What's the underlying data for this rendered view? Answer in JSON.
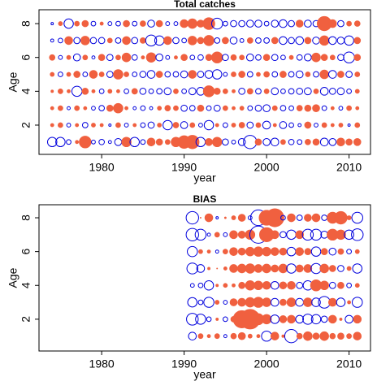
{
  "chart_data": [
    {
      "type": "bubble",
      "title": "Total catches",
      "x_label": "year",
      "y_label": "Age",
      "xlim": [
        1972.4,
        2012.6
      ],
      "ylim": [
        0.27,
        8.82
      ],
      "xticks": [
        1980,
        1990,
        2000,
        2010
      ],
      "yticks": [
        2,
        4,
        6,
        8
      ],
      "colors": {
        "positive": "#f0603f",
        "negative": "#0000dd"
      },
      "x": [
        1974,
        1975,
        1976,
        1977,
        1978,
        1979,
        1980,
        1981,
        1982,
        1983,
        1984,
        1985,
        1986,
        1987,
        1988,
        1989,
        1990,
        1991,
        1992,
        1993,
        1994,
        1995,
        1996,
        1997,
        1998,
        1999,
        2000,
        2001,
        2002,
        2003,
        2004,
        2005,
        2006,
        2007,
        2008,
        2009,
        2010,
        2011
      ],
      "ages": [
        1,
        2,
        3,
        4,
        5,
        6,
        7,
        8
      ],
      "residuals": [
        [
          -1.2,
          -1.2,
          -0.6,
          0.4,
          1.5,
          -0.5,
          -0.7,
          -0.4,
          -0.9,
          1.2,
          -1.2,
          -0.6,
          1.0,
          0.8,
          0.6,
          1.2,
          1.6,
          1.7,
          -1.2,
          0.9,
          1.2,
          -0.8,
          -0.5,
          -0.9,
          -1.7,
          0.8,
          -0.9,
          -1.0,
          0.6,
          -0.7,
          -0.6,
          0.7,
          0.8,
          -1.0,
          -0.9,
          1.0,
          0.8,
          0.9
        ],
        [
          0.4,
          0.6,
          -0.5,
          0.4,
          -0.7,
          0.5,
          0.4,
          -0.3,
          0.6,
          -0.5,
          0.4,
          -0.6,
          -0.8,
          0.5,
          -1.2,
          0.7,
          -0.9,
          0.6,
          -0.5,
          -1.2,
          0.4,
          -0.6,
          0.5,
          0.7,
          -0.8,
          0.6,
          -1.0,
          0.4,
          -0.9,
          -0.6,
          -0.4,
          0.8,
          -0.5,
          0.6,
          0.4,
          0.5,
          -0.3,
          0.6
        ],
        [
          0.4,
          0.6,
          -0.4,
          0.6,
          0.4,
          -0.5,
          -0.7,
          0.8,
          1.2,
          0.4,
          -0.4,
          -0.6,
          -0.4,
          0.5,
          0.7,
          0.6,
          -0.8,
          -0.7,
          0.8,
          -0.6,
          -0.8,
          0.6,
          0.4,
          0.5,
          -0.6,
          -0.8,
          -0.9,
          0.6,
          -0.7,
          -0.6,
          0.7,
          0.8,
          0.9,
          -0.6,
          0.4,
          -0.5,
          0.6,
          0.4
        ],
        [
          0.3,
          0.6,
          0.4,
          -1.3,
          0.8,
          0.4,
          -0.6,
          0.5,
          0.4,
          -0.6,
          0.7,
          -0.8,
          -0.6,
          -0.7,
          -0.9,
          0.6,
          -0.6,
          -0.9,
          -1.0,
          1.4,
          0.8,
          0.6,
          0.4,
          -0.8,
          0.7,
          -0.7,
          0.6,
          -0.9,
          -0.6,
          -0.7,
          -0.8,
          -0.9,
          0.6,
          -1.0,
          -0.8,
          -0.9,
          -0.6,
          0.5
        ],
        [
          0.5,
          -0.6,
          0.5,
          0.8,
          -0.6,
          1.0,
          0.6,
          -0.8,
          1.2,
          0.6,
          -0.6,
          -0.8,
          -1.0,
          0.8,
          -0.7,
          -0.7,
          -0.9,
          1.0,
          -0.8,
          -1.0,
          -1.2,
          -0.5,
          0.6,
          0.8,
          -0.7,
          0.5,
          0.7,
          -0.7,
          0.8,
          -0.7,
          -0.9,
          0.6,
          -0.7,
          1.1,
          -1.0,
          0.8,
          -0.8,
          0.6
        ],
        [
          0.7,
          -0.5,
          0.5,
          -0.9,
          0.6,
          -0.4,
          0.8,
          -0.8,
          0.6,
          1.1,
          -0.7,
          0.4,
          1.2,
          -0.9,
          -0.5,
          0.4,
          0.8,
          -0.6,
          -0.7,
          0.8,
          1.4,
          -0.8,
          0.7,
          0.6,
          -0.9,
          -0.7,
          0.8,
          -0.8,
          -0.6,
          0.5,
          -0.7,
          -0.9,
          1.1,
          0.8,
          0.6,
          -0.8,
          -1.4,
          0.8
        ],
        [
          -0.4,
          -0.6,
          1.0,
          -0.8,
          1.1,
          -0.8,
          -0.8,
          0.6,
          -0.7,
          1.0,
          -0.8,
          0.7,
          -1.4,
          -1.2,
          1.0,
          -0.8,
          -0.6,
          1.1,
          0.8,
          1.3,
          -0.7,
          0.8,
          -0.9,
          -0.5,
          0.7,
          -0.7,
          -0.7,
          0.8,
          -1.0,
          -0.8,
          -1.0,
          0.8,
          -0.9,
          1.2,
          -1.0,
          -0.9,
          -1.2,
          0.8
        ],
        [
          -0.3,
          0.5,
          -1.2,
          0.6,
          0.8,
          -0.6,
          0.4,
          -0.5,
          -0.6,
          0.8,
          -0.6,
          0.7,
          -0.9,
          0.8,
          -0.5,
          -0.5,
          1.0,
          1.2,
          0.9,
          1.5,
          -1.4,
          -0.6,
          -0.8,
          -0.8,
          -0.9,
          -0.9,
          -0.6,
          -0.9,
          -1.0,
          -0.8,
          0.9,
          -0.9,
          -0.8,
          1.8,
          1.0,
          -0.8,
          0.6,
          0.7
        ]
      ]
    },
    {
      "type": "bubble",
      "title": "BIAS",
      "x_label": "year",
      "y_label": "Age",
      "xlim": [
        1972.4,
        2012.6
      ],
      "ylim": [
        0.12,
        8.77
      ],
      "xticks": [
        1980,
        1990,
        2000,
        2010
      ],
      "yticks": [
        2,
        4,
        6,
        8
      ],
      "colors": {
        "positive": "#f0603f",
        "negative": "#0000dd"
      },
      "x": [
        1991,
        1992,
        1993,
        1994,
        1995,
        1996,
        1997,
        1998,
        1999,
        2000,
        2001,
        2002,
        2003,
        2004,
        2005,
        2006,
        2007,
        2008,
        2009,
        2010,
        2011
      ],
      "ages": [
        1,
        2,
        3,
        4,
        5,
        6,
        7,
        8
      ],
      "residuals": [
        [
          -1.0,
          0.6,
          0.4,
          0.6,
          -0.4,
          0.7,
          0.9,
          0.5,
          0.4,
          -1.3,
          1.0,
          0.3,
          -1.7,
          0.7,
          1.1,
          0.8,
          1.1,
          0.7,
          0.8,
          0.6,
          1.0
        ],
        [
          -1.5,
          -1.3,
          -0.6,
          0.3,
          -0.6,
          0.7,
          2.2,
          2.5,
          1.4,
          1.2,
          -1.1,
          0.9,
          1.0,
          -1.0,
          -1.3,
          -1.2,
          -0.8,
          1.0,
          0.3,
          -1.0,
          1.0
        ],
        [
          -1.2,
          -0.6,
          -1.3,
          0.5,
          -0.5,
          0.9,
          1.0,
          1.2,
          1.3,
          1.1,
          -1.0,
          0.8,
          1.1,
          -1.0,
          1.1,
          -1.1,
          -1.5,
          1.0,
          -1.1,
          0.4,
          -1.3
        ],
        [
          -0.5,
          -0.6,
          -1.2,
          0.3,
          0.5,
          0.4,
          0.8,
          1.2,
          1.1,
          1.0,
          -1.0,
          0.9,
          1.0,
          -0.8,
          -1.2,
          1.4,
          1.1,
          -0.8,
          0.8,
          -0.6,
          0.5
        ],
        [
          -1.4,
          -1.0,
          0.3,
          0.1,
          0.4,
          1.0,
          1.1,
          1.2,
          1.0,
          1.1,
          0.9,
          1.1,
          -1.2,
          0.9,
          1.0,
          -1.3,
          1.1,
          0.8,
          -0.8,
          0.5,
          -1.2
        ],
        [
          -1.3,
          0.5,
          0.4,
          -0.4,
          0.6,
          1.0,
          0.9,
          1.1,
          1.2,
          1.1,
          1.0,
          0.9,
          -1.1,
          1.0,
          0.8,
          -1.2,
          0.8,
          -0.9,
          0.7,
          -0.6,
          0.5
        ],
        [
          -1.6,
          -1.4,
          -0.4,
          0.6,
          -0.5,
          1.0,
          0.9,
          1.2,
          -2.2,
          1.8,
          1.0,
          -0.8,
          -1.2,
          1.0,
          -1.4,
          -1.4,
          -0.9,
          1.4,
          1.2,
          -1.2,
          -1.5
        ],
        [
          -1.6,
          0.1,
          1.0,
          -0.3,
          0.2,
          0.5,
          0.9,
          -0.5,
          -2.0,
          1.9,
          2.3,
          -0.6,
          1.0,
          -0.7,
          0.9,
          1.0,
          -0.7,
          1.4,
          1.6,
          0.5,
          -1.4
        ]
      ]
    }
  ]
}
